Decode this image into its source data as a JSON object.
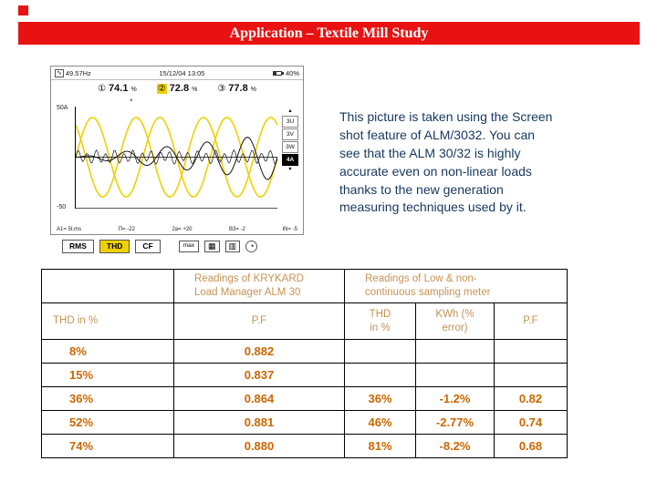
{
  "colors": {
    "banner": "#e81212",
    "yellow": "#f0d000",
    "table-header": "#c69353",
    "table-data": "#cc6600",
    "desc-text": "#17375e"
  },
  "banner": {
    "title": "Application – Textile Mill Study"
  },
  "device": {
    "status": {
      "wave_icon": "∿",
      "freq": "49.57Hz",
      "datetime": "15/12/04 13:05",
      "battery": "40%"
    },
    "phases": [
      {
        "badge": "①",
        "value": "74.1",
        "unit": "%"
      },
      {
        "badge": "②",
        "value": "72.8",
        "unit": "%",
        "selected": true
      },
      {
        "badge": "③",
        "value": "77.8",
        "unit": "%"
      }
    ],
    "chart": {
      "y_top": "50A",
      "y_bottom": "-50",
      "degree": "°"
    },
    "side": {
      "up": "▲",
      "b0": "3U",
      "b1": "3V",
      "b2": "3W",
      "b3": "4A",
      "down": "▼"
    },
    "footer": [
      "A1= 5t.ms",
      "Π= -22",
      "2a= +20",
      "B3= -2",
      "IN= -5"
    ],
    "menu": {
      "rms": "RMS",
      "thd": "THD",
      "cf": "CF",
      "max": "max",
      "grid1": "▦",
      "grid2": "▥",
      "clock": "◔"
    }
  },
  "description": "This picture is taken using the Screen\nshot feature of ALM/3032. You can\nsee that the ALM 30/32 is highly\naccurate even on non-linear loads\nthanks to the new generation\nmeasuring techniques used by it.",
  "table": {
    "group_headers": [
      "Readings of KRYKARD\nLoad Manager ALM 30",
      "Readings of Low & non-\ncontinuous sampling  meter"
    ],
    "col_headers": [
      "THD in %",
      "P.F",
      "THD\nin %",
      "KWh (%\nerror)",
      "P.F"
    ],
    "rows": [
      [
        "8%",
        "0.882",
        "",
        "",
        ""
      ],
      [
        "15%",
        "0.837",
        "",
        "",
        ""
      ],
      [
        "36%",
        "0.864",
        "36%",
        "-1.2%",
        "0.82"
      ],
      [
        "52%",
        "0.881",
        "46%",
        "-2.77%",
        "0.74"
      ],
      [
        "74%",
        "0.880",
        "81%",
        "-8.2%",
        "0.68"
      ]
    ]
  }
}
